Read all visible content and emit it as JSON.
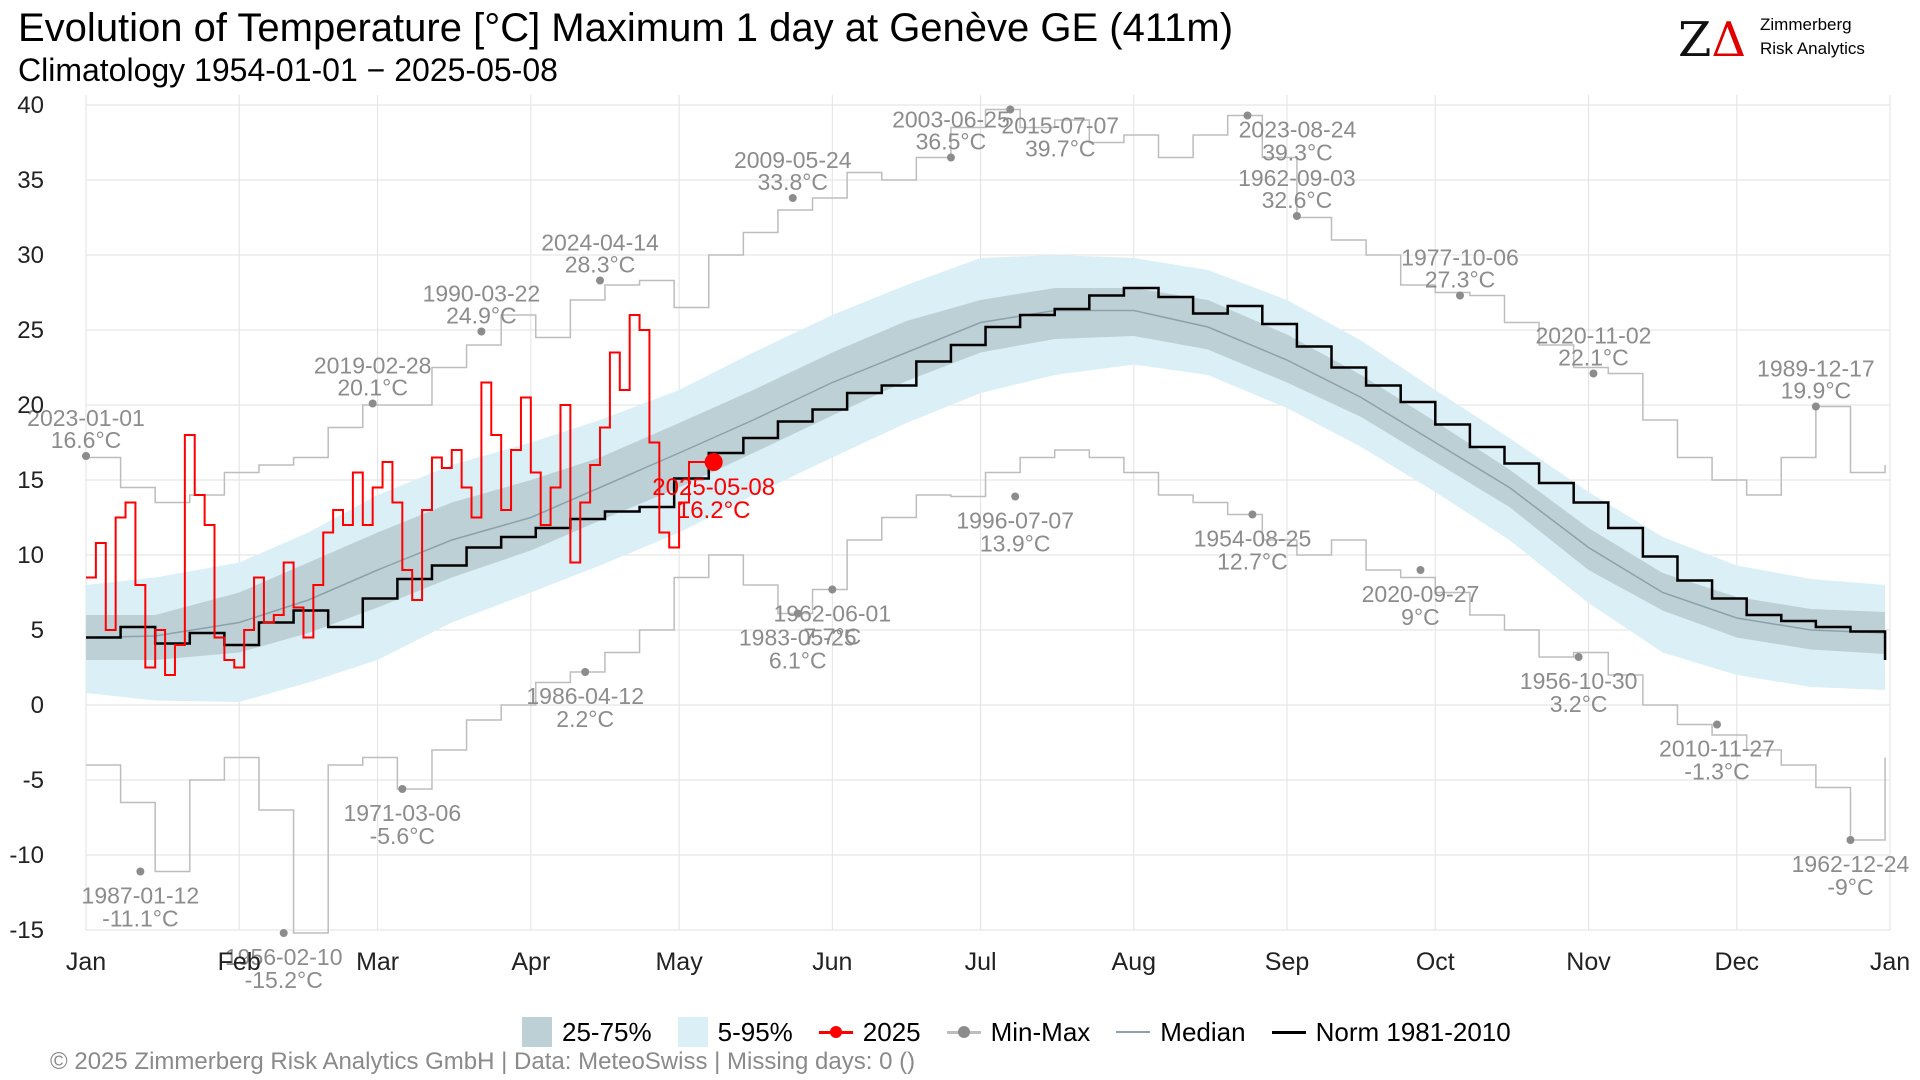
{
  "header": {
    "title": "Evolution of Temperature [°C] Maximum 1 day at Genève  GE (411m)",
    "subtitle": "Climatology 1954-01-01 − 2025-05-08"
  },
  "logo": {
    "mark": "ZΔ",
    "line1": "Zimmerberg",
    "line2": "Risk Analytics"
  },
  "footer": {
    "text": "©  2025 Zimmerberg Risk Analytics GmbH | Data: MeteoSwiss | Missing days: 0 ()"
  },
  "legend": {
    "iqr": "25-75%",
    "p90": "5-95%",
    "current": "2025",
    "minmax": "Min-Max",
    "median": "Median",
    "norm": "Norm 1981-2010"
  },
  "colors": {
    "band_5_95": "#dbeff7",
    "band_25_75": "#bcd0d6",
    "current": "#ff0000",
    "minmax": "#bdbdbd",
    "minmax_label": "#8c8c8c",
    "median": "#8da1ab",
    "norm": "#000000",
    "grid": "#e2e2e2"
  },
  "chart_data": {
    "type": "line",
    "x_unit": "day_of_year",
    "ylim": [
      -15,
      40
    ],
    "yticks": [
      -15,
      -10,
      -5,
      0,
      5,
      10,
      15,
      20,
      25,
      30,
      35,
      40
    ],
    "grid": true,
    "legend_position": "bottom",
    "months": [
      {
        "label": "Jan",
        "day": 1
      },
      {
        "label": "Feb",
        "day": 32
      },
      {
        "label": "Mar",
        "day": 60
      },
      {
        "label": "Apr",
        "day": 91
      },
      {
        "label": "May",
        "day": 121
      },
      {
        "label": "Jun",
        "day": 152
      },
      {
        "label": "Jul",
        "day": 182
      },
      {
        "label": "Aug",
        "day": 213
      },
      {
        "label": "Sep",
        "day": 244
      },
      {
        "label": "Oct",
        "day": 274
      },
      {
        "label": "Nov",
        "day": 305
      },
      {
        "label": "Dec",
        "day": 335
      },
      {
        "label": "Jan",
        "day": 366
      }
    ],
    "median": {
      "name": "Median",
      "x": [
        1,
        15,
        32,
        46,
        60,
        75,
        91,
        105,
        121,
        136,
        152,
        167,
        182,
        197,
        213,
        228,
        244,
        259,
        274,
        289,
        305,
        320,
        335,
        350,
        365
      ],
      "y": [
        4.5,
        4.6,
        5.5,
        7.0,
        9.0,
        11.0,
        12.5,
        14.5,
        16.8,
        19.0,
        21.5,
        23.5,
        25.5,
        26.3,
        26.3,
        25.2,
        23.0,
        20.5,
        17.5,
        14.5,
        10.5,
        7.5,
        5.8,
        5.0,
        4.8
      ]
    },
    "band_25_75": {
      "name": "25-75%",
      "x": [
        1,
        15,
        32,
        46,
        60,
        75,
        91,
        105,
        121,
        136,
        152,
        167,
        182,
        197,
        213,
        228,
        244,
        259,
        274,
        289,
        305,
        320,
        335,
        350,
        365
      ],
      "low": [
        3.0,
        3.0,
        3.5,
        4.8,
        6.5,
        8.5,
        10.3,
        12.3,
        14.5,
        16.8,
        19.3,
        21.6,
        23.5,
        24.4,
        24.6,
        23.7,
        21.5,
        19.2,
        16.2,
        13.2,
        9.0,
        6.3,
        4.5,
        3.7,
        3.4
      ],
      "high": [
        6.0,
        6.0,
        7.5,
        9.5,
        11.5,
        13.5,
        15.0,
        16.5,
        18.8,
        21.0,
        23.5,
        25.6,
        27.0,
        27.8,
        27.8,
        27.0,
        24.7,
        22.0,
        18.9,
        15.7,
        11.8,
        8.8,
        7.2,
        6.4,
        6.2
      ]
    },
    "band_5_95": {
      "name": "5-95%",
      "x": [
        1,
        15,
        32,
        46,
        60,
        75,
        91,
        105,
        121,
        136,
        152,
        167,
        182,
        197,
        213,
        228,
        244,
        259,
        274,
        289,
        305,
        320,
        335,
        350,
        365
      ],
      "low": [
        0.8,
        0.3,
        0.2,
        1.5,
        3.0,
        5.5,
        7.5,
        9.3,
        11.5,
        14.0,
        16.5,
        18.8,
        20.8,
        22.0,
        22.7,
        22.0,
        19.8,
        17.2,
        14.2,
        11.0,
        6.8,
        3.5,
        2.0,
        1.2,
        1.0
      ],
      "high": [
        8.0,
        8.5,
        9.5,
        11.5,
        14.0,
        16.0,
        17.5,
        19.0,
        21.0,
        23.5,
        26.0,
        28.0,
        29.8,
        30.0,
        29.8,
        29.0,
        27.0,
        24.3,
        21.0,
        17.8,
        14.2,
        11.2,
        9.3,
        8.4,
        8.0
      ]
    },
    "norm": {
      "name": "Norm 1981-2010",
      "x": [
        1,
        8,
        15,
        22,
        29,
        36,
        43,
        50,
        57,
        64,
        71,
        78,
        85,
        92,
        99,
        106,
        113,
        120,
        127,
        134,
        141,
        148,
        155,
        162,
        169,
        176,
        183,
        190,
        197,
        204,
        211,
        218,
        225,
        232,
        239,
        246,
        253,
        260,
        267,
        274,
        281,
        288,
        295,
        302,
        309,
        316,
        323,
        330,
        337,
        344,
        351,
        358,
        365
      ],
      "y": [
        4.5,
        5.2,
        4.1,
        4.8,
        4.0,
        5.5,
        6.3,
        5.2,
        7.1,
        8.4,
        9.3,
        10.5,
        11.2,
        11.8,
        12.4,
        12.9,
        13.2,
        15.1,
        16.8,
        17.8,
        18.9,
        19.7,
        20.8,
        21.3,
        22.9,
        24.0,
        25.2,
        26.0,
        26.4,
        27.3,
        27.8,
        27.2,
        26.1,
        26.6,
        25.4,
        23.9,
        22.5,
        21.3,
        20.2,
        18.7,
        17.2,
        16.1,
        14.8,
        13.5,
        11.8,
        9.9,
        8.3,
        7.1,
        6.0,
        5.6,
        5.2,
        4.9,
        3.0
      ]
    },
    "current": {
      "name": "2025",
      "x": [
        1,
        3,
        5,
        7,
        9,
        11,
        13,
        15,
        17,
        19,
        21,
        23,
        25,
        27,
        29,
        31,
        33,
        35,
        37,
        39,
        41,
        43,
        45,
        47,
        49,
        51,
        53,
        55,
        57,
        59,
        61,
        63,
        65,
        67,
        69,
        71,
        73,
        75,
        77,
        79,
        81,
        83,
        85,
        87,
        89,
        91,
        93,
        95,
        97,
        99,
        101,
        103,
        105,
        107,
        109,
        111,
        113,
        115,
        117,
        119,
        121,
        123,
        125,
        127,
        128
      ],
      "y": [
        8.5,
        10.8,
        5.0,
        12.5,
        13.5,
        8.0,
        2.5,
        5.0,
        2.0,
        4.0,
        18.0,
        14.0,
        12.0,
        4.5,
        3.0,
        2.5,
        5.0,
        8.5,
        5.5,
        6.0,
        9.5,
        6.5,
        4.5,
        8.0,
        11.5,
        13.0,
        12.0,
        15.5,
        12.0,
        14.5,
        16.2,
        13.5,
        9.0,
        7.0,
        13.0,
        16.5,
        15.8,
        17.0,
        14.5,
        12.5,
        21.5,
        18.0,
        13.0,
        17.0,
        20.5,
        15.5,
        12.0,
        14.5,
        20.0,
        9.5,
        13.5,
        16.0,
        18.5,
        23.5,
        21.0,
        26.0,
        25.0,
        17.5,
        11.5,
        10.5,
        13.5,
        16.2,
        16.2,
        16.2,
        16.2
      ]
    },
    "max_series": {
      "name": "Max",
      "x": [
        1,
        8,
        15,
        22,
        29,
        36,
        43,
        50,
        57,
        64,
        71,
        78,
        85,
        92,
        99,
        106,
        113,
        120,
        127,
        134,
        141,
        148,
        155,
        162,
        169,
        176,
        183,
        190,
        197,
        204,
        211,
        218,
        225,
        232,
        239,
        246,
        253,
        260,
        267,
        274,
        281,
        288,
        295,
        302,
        309,
        316,
        323,
        330,
        337,
        344,
        351,
        358,
        365
      ],
      "y": [
        16.5,
        14.5,
        13.5,
        14.0,
        15.5,
        16.0,
        16.5,
        18.5,
        20.0,
        20.0,
        22.5,
        24.0,
        26.0,
        24.5,
        27.0,
        28.0,
        28.3,
        26.5,
        30.0,
        31.5,
        33.0,
        33.8,
        35.5,
        35.0,
        36.5,
        38.5,
        39.7,
        38.5,
        39.0,
        37.5,
        38.0,
        36.5,
        38.0,
        39.3,
        36.5,
        32.5,
        31.0,
        30.0,
        28.0,
        27.5,
        27.3,
        25.5,
        24.0,
        22.5,
        22.1,
        19.0,
        16.5,
        15.0,
        14.0,
        16.5,
        19.9,
        15.5,
        16.0
      ]
    },
    "min_series": {
      "name": "Min",
      "x": [
        1,
        8,
        15,
        22,
        29,
        36,
        43,
        50,
        57,
        64,
        71,
        78,
        85,
        92,
        99,
        106,
        113,
        120,
        127,
        134,
        141,
        148,
        155,
        162,
        169,
        176,
        183,
        190,
        197,
        204,
        211,
        218,
        225,
        232,
        239,
        246,
        253,
        260,
        267,
        274,
        281,
        288,
        295,
        302,
        309,
        316,
        323,
        330,
        337,
        344,
        351,
        358,
        365
      ],
      "y": [
        -4.0,
        -6.5,
        -11.1,
        -5.0,
        -3.5,
        -7.0,
        -15.2,
        -4.0,
        -3.5,
        -5.6,
        -3.0,
        -1.0,
        0.0,
        1.5,
        2.2,
        3.5,
        5.0,
        8.5,
        10.0,
        8.0,
        6.1,
        7.7,
        11.0,
        12.5,
        14.0,
        13.9,
        15.5,
        16.5,
        17.0,
        16.5,
        15.5,
        14.0,
        13.5,
        12.7,
        11.0,
        10.0,
        11.0,
        9.0,
        8.5,
        7.5,
        6.0,
        5.0,
        3.2,
        3.5,
        2.0,
        0.0,
        -1.3,
        -2.0,
        -3.0,
        -4.0,
        -5.5,
        -9.0,
        -3.5
      ]
    },
    "records": [
      {
        "date": "2023-01-01",
        "value": "16.6°C",
        "day": 1,
        "y": 16.6
      },
      {
        "date": "2019-02-28",
        "value": "20.1°C",
        "day": 59,
        "y": 20.1
      },
      {
        "date": "1990-03-22",
        "value": "24.9°C",
        "day": 81,
        "y": 24.9
      },
      {
        "date": "2024-04-14",
        "value": "28.3°C",
        "day": 105,
        "y": 28.3
      },
      {
        "date": "2009-05-24",
        "value": "33.8°C",
        "day": 144,
        "y": 33.8
      },
      {
        "date": "2003-06-25",
        "value": "36.5°C",
        "day": 176,
        "y": 36.5
      },
      {
        "date": "2015-07-07",
        "value": "39.7°C",
        "day": 188,
        "y": 39.7
      },
      {
        "date": "2023-08-24",
        "value": "39.3°C",
        "day": 236,
        "y": 39.3
      },
      {
        "date": "1962-09-03",
        "value": "32.6°C",
        "day": 246,
        "y": 32.6
      },
      {
        "date": "1977-10-06",
        "value": "27.3°C",
        "day": 279,
        "y": 27.3
      },
      {
        "date": "2020-11-02",
        "value": "22.1°C",
        "day": 306,
        "y": 22.1
      },
      {
        "date": "1989-12-17",
        "value": "19.9°C",
        "day": 351,
        "y": 19.9
      },
      {
        "date": "1987-01-12",
        "value": "-11.1°C",
        "day": 12,
        "y": -11.1
      },
      {
        "date": "1956-02-10",
        "value": "-15.2°C",
        "day": 41,
        "y": -15.2
      },
      {
        "date": "1971-03-06",
        "value": "-5.6°C",
        "day": 65,
        "y": -5.6
      },
      {
        "date": "1986-04-12",
        "value": "2.2°C",
        "day": 102,
        "y": 2.2
      },
      {
        "date": "1983-05-25",
        "value": "6.1°C",
        "day": 145,
        "y": 6.1
      },
      {
        "date": "1962-06-01",
        "value": "7.7°C",
        "day": 152,
        "y": 7.7
      },
      {
        "date": "1996-07-07",
        "value": "13.9°C",
        "day": 189,
        "y": 13.9
      },
      {
        "date": "1954-08-25",
        "value": "12.7°C",
        "day": 237,
        "y": 12.7
      },
      {
        "date": "2020-09-27",
        "value": "9°C",
        "day": 271,
        "y": 9.0
      },
      {
        "date": "1956-10-30",
        "value": "3.2°C",
        "day": 303,
        "y": 3.2
      },
      {
        "date": "2010-11-27",
        "value": "-1.3°C",
        "day": 331,
        "y": -1.3
      },
      {
        "date": "1962-12-24",
        "value": "-9°C",
        "day": 358,
        "y": -9.0
      }
    ],
    "current_marker": {
      "date": "2025-05-08",
      "value": "16.2°C",
      "day": 128,
      "y": 16.2
    }
  }
}
